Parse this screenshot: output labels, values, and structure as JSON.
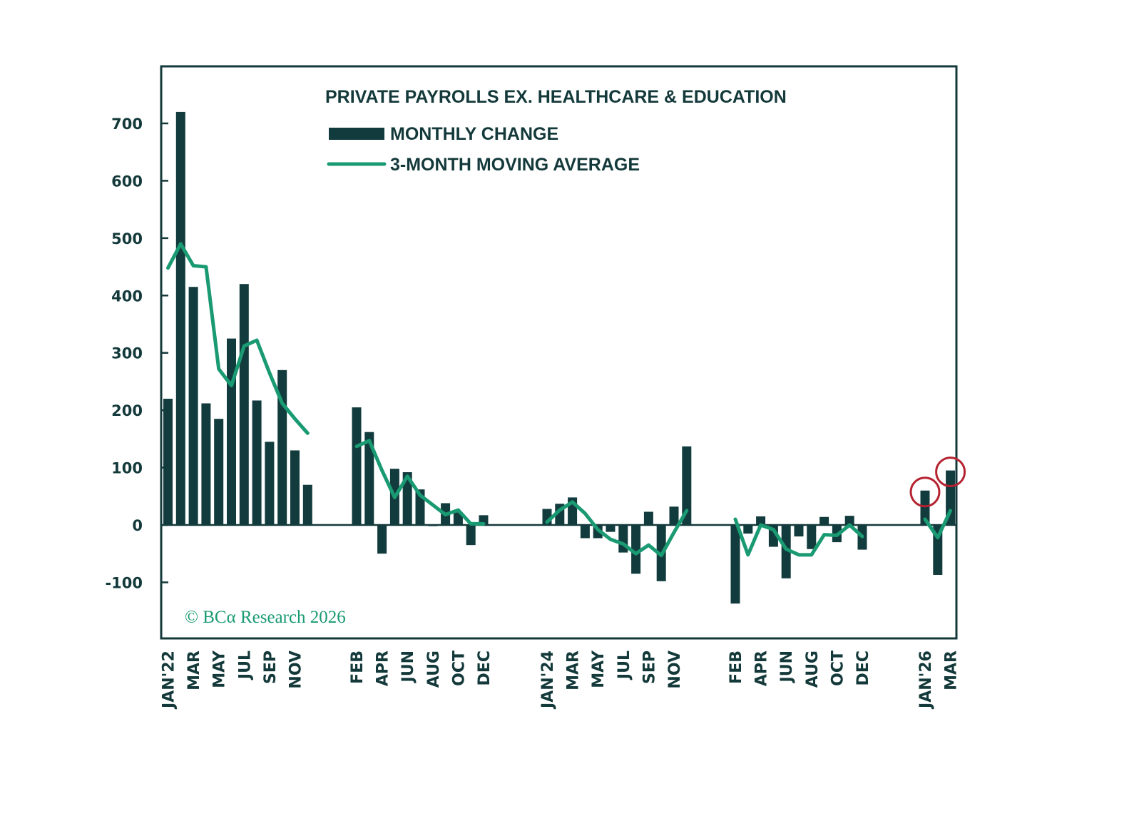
{
  "chart_data": {
    "type": "bar",
    "title": "PRIVATE PAYROLLS EX. HEALTHCARE & EDUCATION",
    "xlabel": "",
    "ylabel": "",
    "ylim": [
      -200,
      800
    ],
    "yticks": [
      700,
      600,
      500,
      400,
      300,
      200,
      100,
      0,
      -100
    ],
    "grid": false,
    "legend_position": "top-center",
    "legend": [
      {
        "name": "MONTHLY CHANGE",
        "kind": "bar",
        "color": "#123b3d"
      },
      {
        "name": "3-MONTH MOVING AVERAGE",
        "kind": "line",
        "color": "#1a9a72"
      }
    ],
    "credit": "© BCα Research 2026",
    "highlight_color": "#b52230",
    "groups": [
      {
        "months": [
          "JAN'22",
          "FEB",
          "MAR",
          "APR",
          "MAY",
          "JUN",
          "JUL",
          "AUG",
          "SEP",
          "OCT",
          "NOV",
          "DEC"
        ],
        "labels": [
          "JAN'22",
          "",
          "MAR",
          "",
          "MAY",
          "",
          "JUL",
          "",
          "SEP",
          "",
          "NOV",
          ""
        ],
        "monthly_change": [
          220,
          720,
          415,
          212,
          185,
          325,
          420,
          217,
          145,
          270,
          130,
          70
        ],
        "moving_average": [
          448,
          490,
          452,
          450,
          272,
          243,
          312,
          322,
          265,
          212,
          185,
          160
        ]
      },
      {
        "months": [
          "FEB",
          "MAR",
          "APR",
          "MAY",
          "JUN",
          "JUL",
          "AUG",
          "SEP",
          "OCT",
          "NOV",
          "DEC"
        ],
        "labels": [
          "FEB",
          "",
          "APR",
          "",
          "JUN",
          "",
          "AUG",
          "",
          "OCT",
          "",
          "DEC"
        ],
        "monthly_change": [
          205,
          162,
          -50,
          98,
          92,
          62,
          -2,
          38,
          22,
          -35,
          17
        ],
        "moving_average": [
          137,
          147,
          95,
          48,
          85,
          52,
          35,
          18,
          26,
          2,
          2
        ]
      },
      {
        "months": [
          "JAN'24",
          "FEB",
          "MAR",
          "APR",
          "MAY",
          "JUN",
          "JUL",
          "AUG",
          "SEP",
          "OCT",
          "NOV",
          "DEC"
        ],
        "labels": [
          "JAN'24",
          "",
          "MAR",
          "",
          "MAY",
          "",
          "JUL",
          "",
          "SEP",
          "",
          "NOV",
          ""
        ],
        "monthly_change": [
          28,
          37,
          48,
          -23,
          -23,
          -12,
          -48,
          -85,
          23,
          -98,
          32,
          137
        ],
        "moving_average": [
          5,
          26,
          40,
          20,
          -8,
          -25,
          -33,
          -50,
          -35,
          -53,
          -13,
          25
        ]
      },
      {
        "months": [
          "FEB",
          "MAR",
          "APR",
          "MAY",
          "JUN",
          "JUL",
          "AUG",
          "SEP",
          "OCT",
          "NOV",
          "DEC"
        ],
        "labels": [
          "FEB",
          "",
          "APR",
          "",
          "JUN",
          "",
          "AUG",
          "",
          "OCT",
          "",
          "DEC"
        ],
        "monthly_change": [
          -137,
          -15,
          15,
          -38,
          -93,
          -20,
          -42,
          14,
          -30,
          16,
          -43
        ],
        "moving_average": [
          10,
          -52,
          0,
          -8,
          -42,
          -52,
          -52,
          -17,
          -18,
          0,
          -20
        ]
      },
      {
        "months": [
          "JAN'26",
          "FEB",
          "MAR"
        ],
        "labels": [
          "JAN'26",
          "",
          "MAR"
        ],
        "monthly_change": [
          60,
          -87,
          95
        ],
        "moving_average": [
          10,
          -22,
          25
        ],
        "highlighted": [
          "JAN'26",
          "MAR"
        ]
      }
    ]
  }
}
